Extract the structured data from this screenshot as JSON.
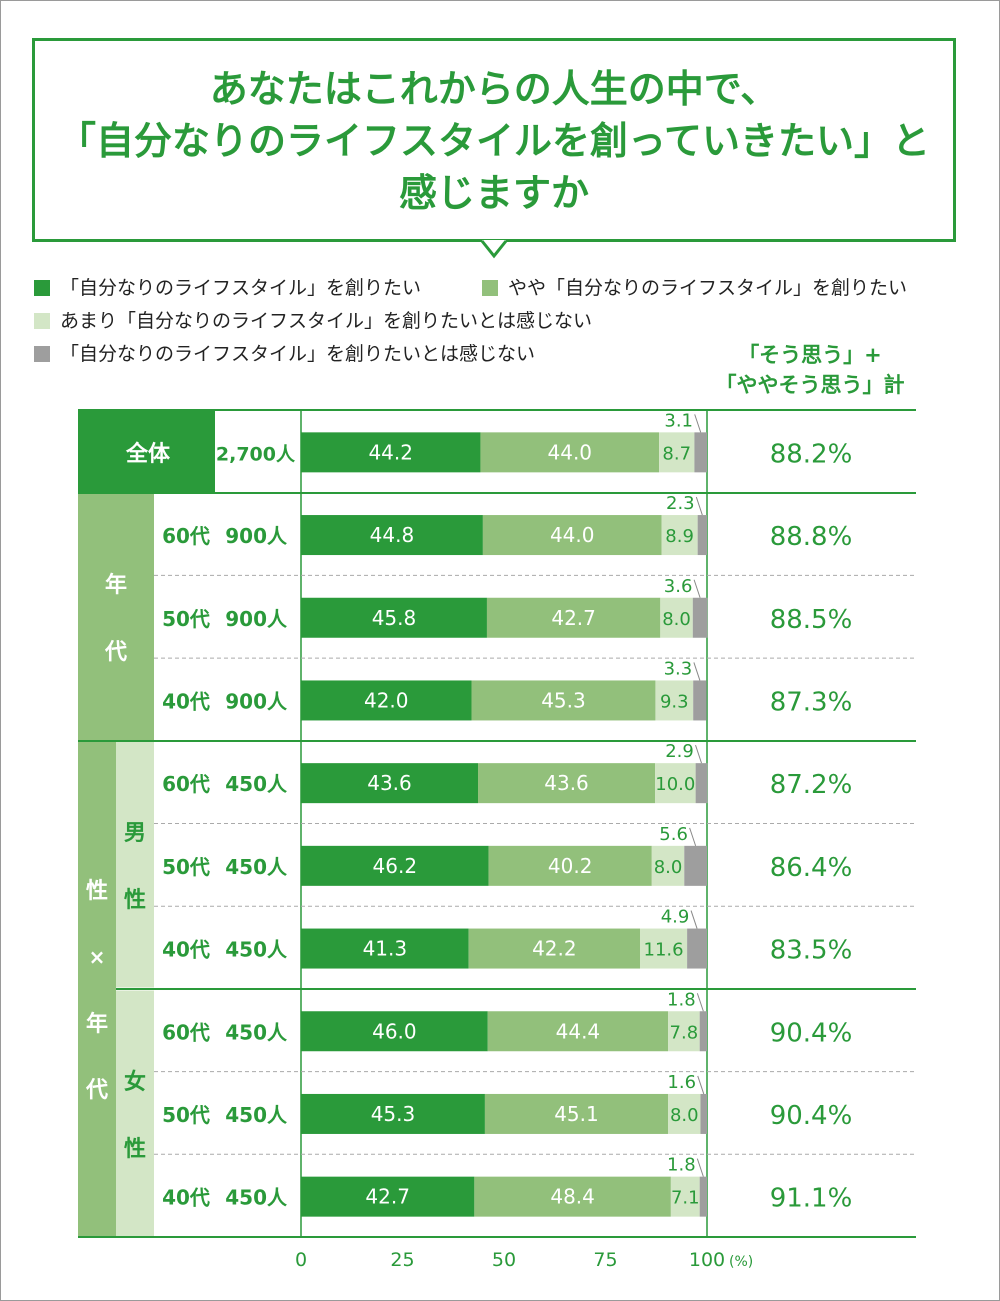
{
  "title": {
    "line1": "あなたはこれからの人生の中で、",
    "line2": "「自分なりのライフスタイルを創っていきたい」と",
    "line3": "感じますか"
  },
  "legend": [
    {
      "label": "「自分なりのライフスタイル」を創りたい",
      "color": "#2a9a3a"
    },
    {
      "label": "やや「自分なりのライフスタイル」を創りたい",
      "color": "#92c07b"
    },
    {
      "label": "あまり「自分なりのライフスタイル」を創りたいとは感じない",
      "color": "#d3e6c6"
    },
    {
      "label": "「自分なりのライフスタイル」を創りたいとは感じない",
      "color": "#9e9e9e"
    }
  ],
  "sum_header": {
    "line1": "「そう思う」+",
    "line2": "「ややそう思う」計"
  },
  "groups": {
    "total": "全体",
    "age": [
      "年",
      "代"
    ],
    "sex_age": [
      "性",
      "×",
      "年",
      "代"
    ],
    "male": [
      "男",
      "性"
    ],
    "female": [
      "女",
      "性"
    ]
  },
  "x_axis": {
    "ticks": [
      "0",
      "25",
      "50",
      "75",
      "100"
    ],
    "unit": "(%)"
  },
  "chart_data": {
    "type": "bar",
    "orientation": "horizontal",
    "stacked": true,
    "xlim": [
      0,
      100
    ],
    "series_names": [
      "「自分なりのライフスタイル」を創りたい",
      "やや「自分なりのライフスタイル」を創りたい",
      "あまり「自分なりのライフスタイル」を創りたいとは感じない",
      "「自分なりのライフスタイル」を創りたいとは感じない"
    ],
    "rows": [
      {
        "group": "全体",
        "age": "",
        "n": "2,700人",
        "values": [
          44.2,
          44.0,
          8.7,
          3.1
        ],
        "sum": "88.2%"
      },
      {
        "group": "年代",
        "age": "60代",
        "n": "900人",
        "values": [
          44.8,
          44.0,
          8.9,
          2.3
        ],
        "sum": "88.8%"
      },
      {
        "group": "年代",
        "age": "50代",
        "n": "900人",
        "values": [
          45.8,
          42.7,
          8.0,
          3.6
        ],
        "sum": "88.5%"
      },
      {
        "group": "年代",
        "age": "40代",
        "n": "900人",
        "values": [
          42.0,
          45.3,
          9.3,
          3.3
        ],
        "sum": "87.3%"
      },
      {
        "group": "男性",
        "age": "60代",
        "n": "450人",
        "values": [
          43.6,
          43.6,
          10.0,
          2.9
        ],
        "sum": "87.2%"
      },
      {
        "group": "男性",
        "age": "50代",
        "n": "450人",
        "values": [
          46.2,
          40.2,
          8.0,
          5.6
        ],
        "sum": "86.4%"
      },
      {
        "group": "男性",
        "age": "40代",
        "n": "450人",
        "values": [
          41.3,
          42.2,
          11.6,
          4.9
        ],
        "sum": "83.5%"
      },
      {
        "group": "女性",
        "age": "60代",
        "n": "450人",
        "values": [
          46.0,
          44.4,
          7.8,
          1.8
        ],
        "sum": "90.4%"
      },
      {
        "group": "女性",
        "age": "50代",
        "n": "450人",
        "values": [
          45.3,
          45.1,
          8.0,
          1.6
        ],
        "sum": "90.4%"
      },
      {
        "group": "女性",
        "age": "40代",
        "n": "450人",
        "values": [
          42.7,
          48.4,
          7.1,
          1.8
        ],
        "sum": "91.1%"
      }
    ]
  }
}
